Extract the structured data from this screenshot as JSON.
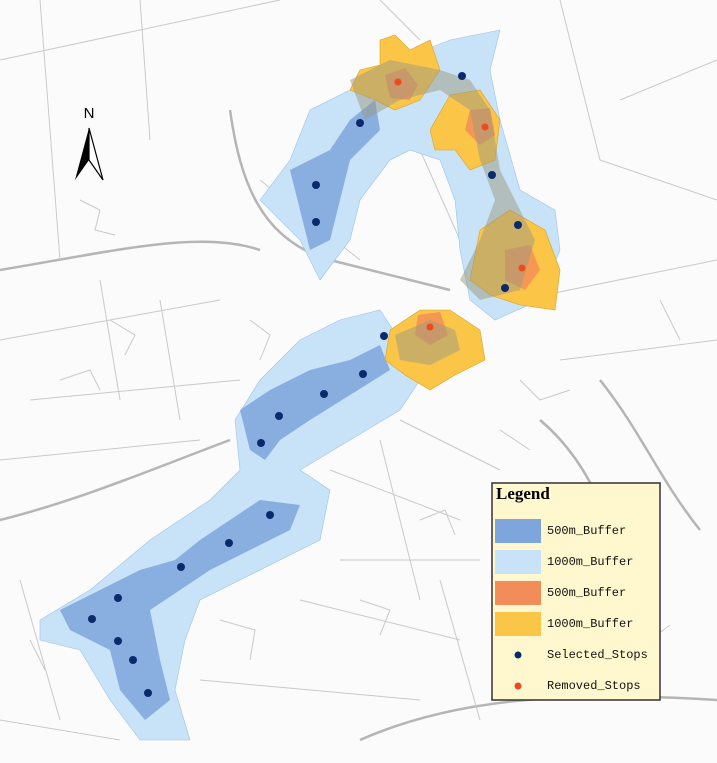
{
  "north_arrow": {
    "label": "N"
  },
  "legend": {
    "title": "Legend",
    "items": [
      {
        "label": "500m_Buffer",
        "color": "#7ea6dc",
        "symbol": "box"
      },
      {
        "label": "1000m_Buffer",
        "color": "#c8e2f7",
        "symbol": "box"
      },
      {
        "label": "500m_Buffer",
        "color": "#f28c58",
        "symbol": "box"
      },
      {
        "label": "1000m_Buffer",
        "color": "#fbc548",
        "symbol": "box"
      },
      {
        "label": "Selected_Stops",
        "color": "#0b2a6b",
        "symbol": "dot"
      },
      {
        "label": "Removed_Stops",
        "color": "#ef4a1e",
        "symbol": "dot"
      }
    ]
  }
}
